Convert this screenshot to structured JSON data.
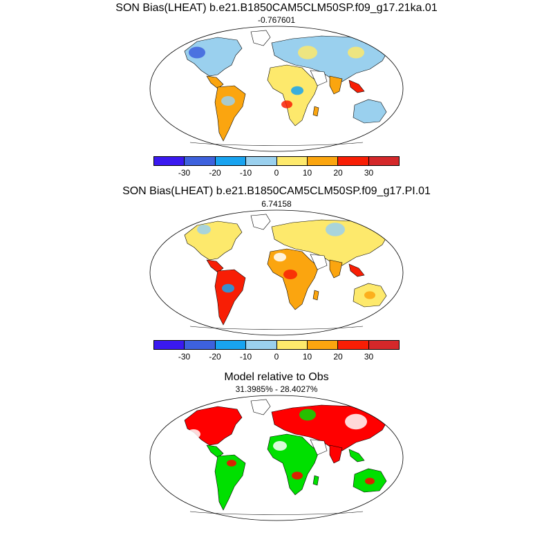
{
  "panels": [
    {
      "title": "SON Bias(LHEAT) b.e21.B1850CAM5CLM50SP.f09_g17.21ka.01",
      "subtitle": "-0.767601"
    },
    {
      "title": "SON Bias(LHEAT) b.e21.B1850CAM5CLM50SP.f09_g17.PI.01",
      "subtitle": "6.74158"
    },
    {
      "title": "Model relative to Obs",
      "subtitle": "31.3985% - 28.4027%"
    }
  ],
  "colorbar": {
    "colors": [
      "#3a19f0",
      "#3d61dd",
      "#18a3f0",
      "#9ad0ee",
      "#fde96c",
      "#fba50f",
      "#f81e05",
      "#d4282a"
    ],
    "tick_labels": [
      "-30",
      "-20",
      "-10",
      "0",
      "10",
      "20",
      "30"
    ]
  },
  "palette": {
    "land_cool": "#9ad0ee",
    "land_mid": "#fde96c",
    "land_warm": "#fba50f",
    "land_hot": "#f81e05",
    "land_blue": "#18a3f0",
    "land_deep": "#3d61dd",
    "obs_red": "#ff0000",
    "obs_green": "#00e000"
  }
}
